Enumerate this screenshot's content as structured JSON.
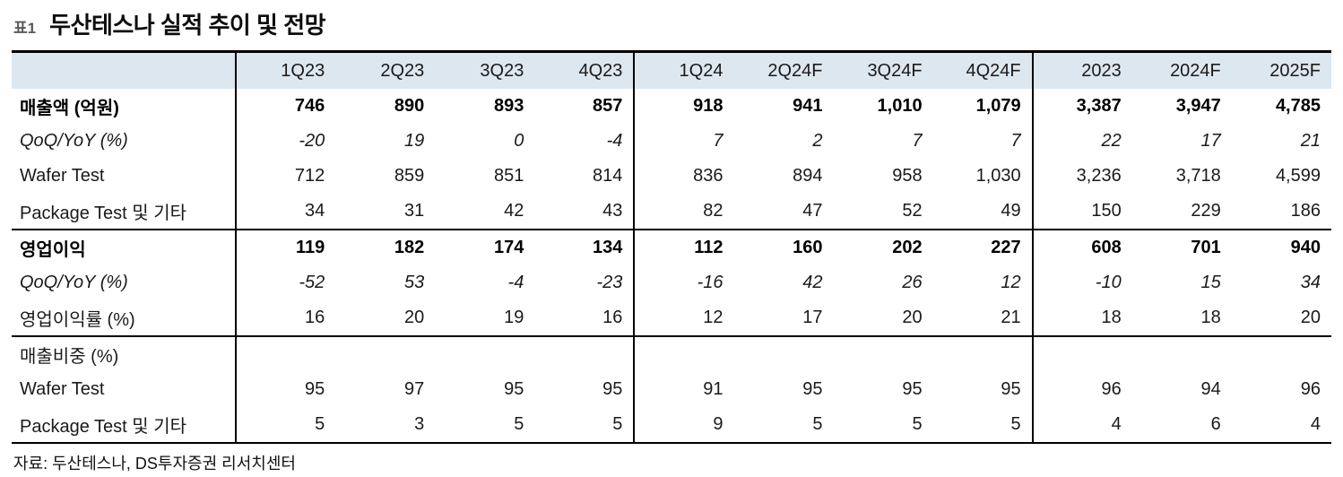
{
  "colors": {
    "header_bg": "#dde7f0",
    "border": "#000000",
    "tag_gray": "#595959"
  },
  "title": {
    "tag": "표1",
    "text": "두산테스나 실적 추이 및 전망"
  },
  "table": {
    "columns": [
      "",
      "1Q23",
      "2Q23",
      "3Q23",
      "4Q23",
      "1Q24",
      "2Q24F",
      "3Q24F",
      "4Q24F",
      "2023",
      "2024F",
      "2025F"
    ],
    "rows": [
      {
        "label": "매출액 (억원)",
        "style": "bold",
        "section_start": false,
        "values": [
          "746",
          "890",
          "893",
          "857",
          "918",
          "941",
          "1,010",
          "1,079",
          "3,387",
          "3,947",
          "4,785"
        ]
      },
      {
        "label": "QoQ/YoY (%)",
        "style": "italic",
        "section_start": false,
        "values": [
          "-20",
          "19",
          "0",
          "-4",
          "7",
          "2",
          "7",
          "7",
          "22",
          "17",
          "21"
        ]
      },
      {
        "label": "Wafer Test",
        "style": "normal",
        "section_start": false,
        "values": [
          "712",
          "859",
          "851",
          "814",
          "836",
          "894",
          "958",
          "1,030",
          "3,236",
          "3,718",
          "4,599"
        ]
      },
      {
        "label": "Package Test 및 기타",
        "style": "normal",
        "section_start": false,
        "values": [
          "34",
          "31",
          "42",
          "43",
          "82",
          "47",
          "52",
          "49",
          "150",
          "229",
          "186"
        ]
      },
      {
        "label": "영업이익",
        "style": "bold",
        "section_start": true,
        "values": [
          "119",
          "182",
          "174",
          "134",
          "112",
          "160",
          "202",
          "227",
          "608",
          "701",
          "940"
        ]
      },
      {
        "label": "QoQ/YoY (%)",
        "style": "italic",
        "section_start": false,
        "values": [
          "-52",
          "53",
          "-4",
          "-23",
          "-16",
          "42",
          "26",
          "12",
          "-10",
          "15",
          "34"
        ]
      },
      {
        "label": "영업이익률 (%)",
        "style": "normal",
        "section_start": false,
        "values": [
          "16",
          "20",
          "19",
          "16",
          "12",
          "17",
          "20",
          "21",
          "18",
          "18",
          "20"
        ]
      },
      {
        "label": "매출비중 (%)",
        "style": "normal",
        "section_start": true,
        "values": [
          "",
          "",
          "",
          "",
          "",
          "",
          "",
          "",
          "",
          "",
          ""
        ]
      },
      {
        "label": "Wafer Test",
        "style": "normal",
        "section_start": false,
        "values": [
          "95",
          "97",
          "95",
          "95",
          "91",
          "95",
          "95",
          "95",
          "96",
          "94",
          "96"
        ]
      },
      {
        "label": "Package Test 및 기타",
        "style": "normal",
        "section_start": false,
        "values": [
          "5",
          "3",
          "5",
          "5",
          "9",
          "5",
          "5",
          "5",
          "4",
          "6",
          "4"
        ]
      }
    ]
  },
  "source": "자료: 두산테스나, DS투자증권 리서치센터"
}
